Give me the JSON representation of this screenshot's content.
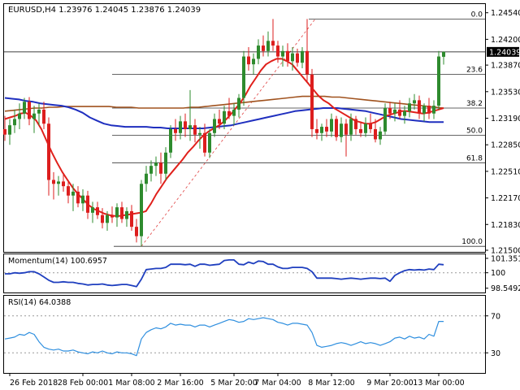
{
  "colors": {
    "bull": "#2e8b2e",
    "bear": "#dd1e1e",
    "ma_fast": "#e0201b",
    "ma_slow": "#1f2fbf",
    "ma_long": "#a0521e",
    "momentum": "#1f3fbf",
    "rsi": "#2f8fdf",
    "fib": "#333333",
    "frame": "#000000"
  },
  "chart_data": [
    {
      "type": "candlestick",
      "title": "EURUSD,H4  1.23976 1.24045 1.23876 1.24039",
      "current_price": 1.24039,
      "current_price_label": "1.24039",
      "ylim": [
        1.215,
        1.2462
      ],
      "ytick_labels": [
        "1.24540",
        "1.24200",
        "1.23870",
        "1.23530",
        "1.23190",
        "1.22850",
        "1.22510",
        "1.22170",
        "1.21830",
        "1.21500"
      ],
      "ytick_values": [
        1.2454,
        1.242,
        1.2387,
        1.2353,
        1.2319,
        1.2285,
        1.2251,
        1.2217,
        1.2183,
        1.215
      ],
      "xtick_labels": [
        "26 Feb 2018",
        "28 Feb 00:00",
        "1 Mar 08:00",
        "2 Mar 16:00",
        "5 Mar 20:00",
        "7 Mar 04:00",
        "8 Mar 12:00",
        "9 Mar 20:00",
        "13 Mar 00:00"
      ],
      "xtick_index": [
        1,
        16,
        26,
        36,
        47,
        56,
        67,
        79,
        89
      ],
      "fibonacci": {
        "levels": [
          {
            "label": "0.0",
            "price": 1.2446
          },
          {
            "label": "23.6",
            "price": 1.2375
          },
          {
            "label": "38.2",
            "price": 1.2332
          },
          {
            "label": "50.0",
            "price": 1.2297
          },
          {
            "label": "61.8",
            "price": 1.2262
          },
          {
            "label": "100.0",
            "price": 1.2155
          }
        ],
        "diagonal_from_index": 28,
        "diagonal_to_index": 75
      },
      "ohlc": [
        [
          1.2305,
          1.2322,
          1.229,
          1.2298
        ],
        [
          1.2298,
          1.2318,
          1.2285,
          1.231
        ],
        [
          1.231,
          1.233,
          1.23,
          1.2318
        ],
        [
          1.2318,
          1.2338,
          1.2305,
          1.2325
        ],
        [
          1.2325,
          1.2345,
          1.2318,
          1.234
        ],
        [
          1.234,
          1.2346,
          1.231,
          1.2318
        ],
        [
          1.2318,
          1.2335,
          1.23,
          1.2325
        ],
        [
          1.2325,
          1.2338,
          1.231,
          1.233
        ],
        [
          1.233,
          1.234,
          1.2305,
          1.2312
        ],
        [
          1.2312,
          1.232,
          1.222,
          1.224
        ],
        [
          1.224,
          1.225,
          1.2215,
          1.2235
        ],
        [
          1.2235,
          1.2245,
          1.222,
          1.2238
        ],
        [
          1.2238,
          1.2248,
          1.2225,
          1.2232
        ],
        [
          1.2232,
          1.224,
          1.221,
          1.222
        ],
        [
          1.222,
          1.2235,
          1.22,
          1.2225
        ],
        [
          1.2225,
          1.2232,
          1.2205,
          1.221
        ],
        [
          1.221,
          1.2228,
          1.22,
          1.222
        ],
        [
          1.222,
          1.2226,
          1.219,
          1.2198
        ],
        [
          1.2198,
          1.2212,
          1.2185,
          1.2205
        ],
        [
          1.2205,
          1.2212,
          1.219,
          1.2195
        ],
        [
          1.2195,
          1.2204,
          1.2178,
          1.2185
        ],
        [
          1.2185,
          1.22,
          1.2175,
          1.2195
        ],
        [
          1.2195,
          1.2206,
          1.2185,
          1.2192
        ],
        [
          1.2192,
          1.221,
          1.218,
          1.2205
        ],
        [
          1.2205,
          1.2212,
          1.2185,
          1.219
        ],
        [
          1.219,
          1.2205,
          1.218,
          1.22
        ],
        [
          1.22,
          1.2208,
          1.2175,
          1.218
        ],
        [
          1.218,
          1.219,
          1.216,
          1.2168
        ],
        [
          1.2168,
          1.224,
          1.2155,
          1.2235
        ],
        [
          1.2235,
          1.2258,
          1.2225,
          1.2248
        ],
        [
          1.2248,
          1.2265,
          1.2238,
          1.2258
        ],
        [
          1.2258,
          1.227,
          1.2245,
          1.2262
        ],
        [
          1.2262,
          1.2275,
          1.2235,
          1.2248
        ],
        [
          1.2248,
          1.2282,
          1.224,
          1.2275
        ],
        [
          1.2275,
          1.231,
          1.2268,
          1.2305
        ],
        [
          1.2305,
          1.2318,
          1.229,
          1.23
        ],
        [
          1.23,
          1.2322,
          1.2292,
          1.2315
        ],
        [
          1.2315,
          1.2325,
          1.2295,
          1.2305
        ],
        [
          1.2305,
          1.2355,
          1.229,
          1.231
        ],
        [
          1.231,
          1.2318,
          1.2288,
          1.2298
        ],
        [
          1.2298,
          1.2308,
          1.228,
          1.23
        ],
        [
          1.23,
          1.2312,
          1.227,
          1.2275
        ],
        [
          1.2275,
          1.2305,
          1.2268,
          1.23
        ],
        [
          1.23,
          1.2325,
          1.2295,
          1.2318
        ],
        [
          1.2318,
          1.233,
          1.2305,
          1.2312
        ],
        [
          1.2312,
          1.2335,
          1.2305,
          1.2328
        ],
        [
          1.2328,
          1.2345,
          1.2318,
          1.2322
        ],
        [
          1.2322,
          1.2338,
          1.231,
          1.233
        ],
        [
          1.233,
          1.235,
          1.232,
          1.2345
        ],
        [
          1.2345,
          1.2405,
          1.2335,
          1.2398
        ],
        [
          1.2398,
          1.241,
          1.238,
          1.2388
        ],
        [
          1.2388,
          1.2402,
          1.2375,
          1.2395
        ],
        [
          1.2395,
          1.242,
          1.2388,
          1.2412
        ],
        [
          1.2412,
          1.2425,
          1.2398,
          1.2405
        ],
        [
          1.2405,
          1.243,
          1.2398,
          1.2418
        ],
        [
          1.2418,
          1.2446,
          1.2405,
          1.2412
        ],
        [
          1.2412,
          1.2418,
          1.239,
          1.2398
        ],
        [
          1.2398,
          1.2412,
          1.2385,
          1.2405
        ],
        [
          1.2405,
          1.2415,
          1.2385,
          1.2392
        ],
        [
          1.2392,
          1.241,
          1.238,
          1.2402
        ],
        [
          1.2402,
          1.2408,
          1.2385,
          1.239
        ],
        [
          1.239,
          1.241,
          1.2383,
          1.2405
        ],
        [
          1.2405,
          1.2446,
          1.2365,
          1.2375
        ],
        [
          1.2375,
          1.2382,
          1.2295,
          1.2305
        ],
        [
          1.2305,
          1.2318,
          1.2292,
          1.23
        ],
        [
          1.23,
          1.2312,
          1.229,
          1.2308
        ],
        [
          1.2308,
          1.2318,
          1.2295,
          1.2302
        ],
        [
          1.2302,
          1.2325,
          1.2295,
          1.2318
        ],
        [
          1.2318,
          1.2322,
          1.229,
          1.2295
        ],
        [
          1.2295,
          1.232,
          1.2288,
          1.2312
        ],
        [
          1.2312,
          1.2318,
          1.227,
          1.2298
        ],
        [
          1.2298,
          1.2325,
          1.229,
          1.2318
        ],
        [
          1.2318,
          1.2322,
          1.2298,
          1.2305
        ],
        [
          1.2305,
          1.2315,
          1.2295,
          1.23
        ],
        [
          1.23,
          1.232,
          1.2295,
          1.2312
        ],
        [
          1.2312,
          1.2325,
          1.23,
          1.2305
        ],
        [
          1.2305,
          1.2318,
          1.2288,
          1.2292
        ],
        [
          1.2292,
          1.2308,
          1.2285,
          1.2302
        ],
        [
          1.2302,
          1.2338,
          1.2298,
          1.2332
        ],
        [
          1.2332,
          1.234,
          1.2318,
          1.2325
        ],
        [
          1.2325,
          1.2338,
          1.2315,
          1.233
        ],
        [
          1.233,
          1.2342,
          1.2318,
          1.2322
        ],
        [
          1.2322,
          1.2335,
          1.2312,
          1.2328
        ],
        [
          1.2328,
          1.2345,
          1.232,
          1.2338
        ],
        [
          1.2338,
          1.235,
          1.233,
          1.2342
        ],
        [
          1.2342,
          1.2348,
          1.2318,
          1.2325
        ],
        [
          1.2325,
          1.2338,
          1.2315,
          1.2335
        ],
        [
          1.2335,
          1.2345,
          1.2318,
          1.2325
        ],
        [
          1.2325,
          1.2342,
          1.2318,
          1.2335
        ],
        [
          1.2335,
          1.2405,
          1.233,
          1.2398
        ],
        [
          1.23976,
          1.24045,
          1.23876,
          1.24039
        ]
      ],
      "ma_fast": [
        1.2318,
        1.232,
        1.2322,
        1.2325,
        1.2326,
        1.2322,
        1.2316,
        1.2305,
        1.229,
        1.2275,
        1.2262,
        1.225,
        1.224,
        1.223,
        1.2222,
        1.2215,
        1.2208,
        1.2203,
        1.22,
        1.2197,
        1.2195,
        1.2194,
        1.2194,
        1.2195,
        1.2196,
        1.2197,
        1.2198,
        1.22,
        1.221,
        1.2222,
        1.2232,
        1.2242,
        1.225,
        1.2258,
        1.2266,
        1.2275,
        1.2282,
        1.229,
        1.2297,
        1.2302,
        1.2306,
        1.231,
        1.2315,
        1.2322,
        1.233,
        1.2338,
        1.2348,
        1.236,
        1.237,
        1.238,
        1.2388,
        1.2392,
        1.2395,
        1.2395,
        1.2392,
        1.2388,
        1.238,
        1.2372,
        1.2364,
        1.2356,
        1.2348,
        1.2342,
        1.2338,
        1.2332,
        1.2328,
        1.2324,
        1.232,
        1.2316,
        1.2314,
        1.2312,
        1.2312,
        1.2314,
        1.2318,
        1.2322,
        1.2324,
        1.2326,
        1.2328,
        1.2328,
        1.2327,
        1.2326,
        1.2325,
        1.2326,
        1.2328,
        1.233,
        1.2332
      ],
      "ma_slow": [
        1.2345,
        1.2344,
        1.2343,
        1.2341,
        1.234,
        1.2338,
        1.2337,
        1.2336,
        1.2335,
        1.2333,
        1.233,
        1.2326,
        1.232,
        1.2316,
        1.2312,
        1.231,
        1.2309,
        1.2308,
        1.2308,
        1.2308,
        1.2308,
        1.2307,
        1.2307,
        1.2306,
        1.2306,
        1.2306,
        1.2306,
        1.2306,
        1.2306,
        1.2307,
        1.2308,
        1.2309,
        1.231,
        1.2312,
        1.2314,
        1.2316,
        1.2318,
        1.232,
        1.2322,
        1.2324,
        1.2326,
        1.2328,
        1.2329,
        1.233,
        1.2331,
        1.2332,
        1.2332,
        1.2332,
        1.2331,
        1.233,
        1.2329,
        1.2328,
        1.2326,
        1.2324,
        1.2322,
        1.232,
        1.2318,
        1.2317,
        1.2316,
        1.2315,
        1.2314,
        1.2314,
        1.2314
      ],
      "ma_long": [
        1.2328,
        1.2329,
        1.233,
        1.2331,
        1.2332,
        1.2332,
        1.2333,
        1.2333,
        1.2334,
        1.2334,
        1.2334,
        1.2334,
        1.2334,
        1.2334,
        1.2334,
        1.2333,
        1.2333,
        1.2333,
        1.2332,
        1.2332,
        1.2332,
        1.2332,
        1.2332,
        1.2332,
        1.2332,
        1.2333,
        1.2333,
        1.2334,
        1.2335,
        1.2336,
        1.2337,
        1.2338,
        1.2339,
        1.234,
        1.2341,
        1.2342,
        1.2343,
        1.2344,
        1.2345,
        1.2346,
        1.2347,
        1.2347,
        1.2347,
        1.2347,
        1.2346,
        1.2346,
        1.2345,
        1.2344,
        1.2343,
        1.2342,
        1.2341,
        1.234,
        1.2339,
        1.2338,
        1.2337,
        1.2336,
        1.2335,
        1.2334,
        1.2333,
        1.2332
      ]
    },
    {
      "type": "line",
      "title": "Momentum(14) 100.6957",
      "ylim": [
        98.3,
        101.5
      ],
      "ytick_labels": [
        "101.3511",
        "100",
        "98.5492"
      ],
      "ytick_values": [
        101.3511,
        100,
        98.5492
      ],
      "reference_line": 100,
      "values": [
        99.9,
        99.9,
        100.0,
        99.95,
        100.0,
        100.1,
        100.1,
        99.9,
        99.6,
        99.3,
        99.1,
        99.1,
        99.15,
        99.1,
        99.1,
        99.0,
        98.95,
        98.85,
        98.9,
        98.9,
        98.95,
        98.85,
        98.8,
        98.85,
        98.9,
        98.9,
        98.8,
        98.7,
        99.4,
        100.3,
        100.35,
        100.4,
        100.4,
        100.5,
        100.8,
        100.8,
        100.8,
        100.75,
        100.8,
        100.6,
        100.8,
        100.8,
        100.7,
        100.75,
        100.8,
        101.15,
        101.2,
        101.2,
        100.8,
        100.75,
        101.0,
        100.85,
        101.1,
        101.05,
        100.8,
        100.8,
        100.55,
        100.4,
        100.4,
        100.5,
        100.5,
        100.5,
        100.4,
        100.1,
        99.5,
        99.5,
        99.5,
        99.5,
        99.45,
        99.4,
        99.45,
        99.5,
        99.45,
        99.4,
        99.45,
        99.5,
        99.5,
        99.45,
        99.5,
        99.2,
        99.75,
        100.0,
        100.2,
        100.3,
        100.25,
        100.3,
        100.25,
        100.35,
        100.3,
        100.8,
        100.75
      ],
      "series_name": "Momentum(14)"
    },
    {
      "type": "line",
      "title": "RSI(14) 64.0388",
      "ylim": [
        10,
        90
      ],
      "ytick_labels": [
        "70",
        "30"
      ],
      "ytick_values": [
        70,
        30
      ],
      "levels": [
        70,
        30
      ],
      "values": [
        45,
        46,
        47,
        50,
        49,
        52,
        50,
        42,
        36,
        34,
        33,
        34,
        32,
        32,
        33,
        31,
        30,
        29,
        31,
        30,
        32,
        30,
        29,
        31,
        30,
        30,
        29,
        27,
        45,
        52,
        55,
        57,
        56,
        58,
        62,
        60,
        61,
        60,
        60,
        58,
        60,
        60,
        58,
        60,
        62,
        64,
        66,
        65,
        63,
        64,
        67,
        66,
        67,
        68,
        67,
        66,
        63,
        62,
        60,
        62,
        62,
        61,
        60,
        52,
        38,
        36,
        37,
        38,
        40,
        41,
        40,
        38,
        40,
        42,
        40,
        41,
        40,
        38,
        40,
        42,
        46,
        47,
        45,
        48,
        46,
        47,
        45,
        50,
        48,
        64,
        64
      ],
      "series_name": "RSI(14)"
    }
  ]
}
